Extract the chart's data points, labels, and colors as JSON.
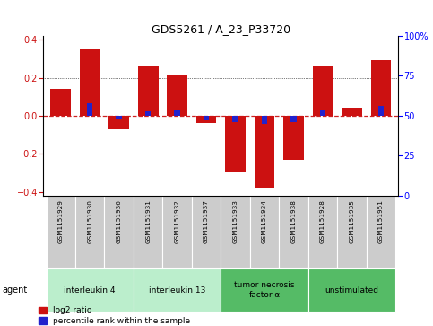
{
  "title": "GDS5261 / A_23_P33720",
  "samples": [
    "GSM1151929",
    "GSM1151930",
    "GSM1151936",
    "GSM1151931",
    "GSM1151932",
    "GSM1151937",
    "GSM1151933",
    "GSM1151934",
    "GSM1151938",
    "GSM1151928",
    "GSM1151935",
    "GSM1151951"
  ],
  "log2_ratio": [
    0.14,
    0.35,
    -0.07,
    0.26,
    0.21,
    -0.04,
    -0.3,
    -0.38,
    -0.23,
    0.26,
    0.04,
    0.29
  ],
  "percentile_rank": [
    50,
    58,
    48,
    53,
    54,
    47,
    46,
    45,
    46,
    54,
    50,
    56
  ],
  "agents": [
    {
      "label": "interleukin 4",
      "start": 0,
      "end": 3,
      "color": "#bbeecc"
    },
    {
      "label": "interleukin 13",
      "start": 3,
      "end": 6,
      "color": "#bbeecc"
    },
    {
      "label": "tumor necrosis\nfactor-α",
      "start": 6,
      "end": 9,
      "color": "#55bb66"
    },
    {
      "label": "unstimulated",
      "start": 9,
      "end": 12,
      "color": "#55bb66"
    }
  ],
  "ylim": [
    -0.42,
    0.42
  ],
  "yticks_left": [
    -0.4,
    -0.2,
    0.0,
    0.2,
    0.4
  ],
  "yticks_right": [
    0,
    25,
    50,
    75,
    100
  ],
  "bar_width": 0.7,
  "red_color": "#cc1111",
  "blue_color": "#2222cc",
  "grid_color": "#000000",
  "zero_line_color": "#cc2222",
  "sample_box_color": "#cccccc",
  "legend_red_label": "log2 ratio",
  "legend_blue_label": "percentile rank within the sample",
  "percentile_bar_width": 0.2
}
